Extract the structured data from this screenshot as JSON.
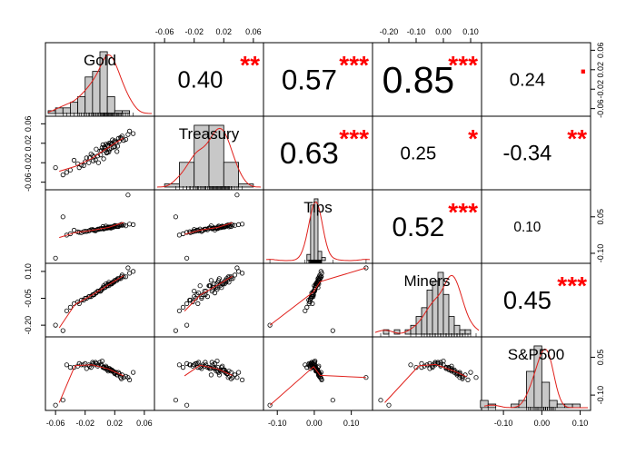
{
  "chart_data": {
    "type": "scatter-matrix",
    "variables": [
      "Gold",
      "Treasury",
      "Tips",
      "Miners",
      "S&P500"
    ],
    "ranges": [
      [
        -0.07,
        0.07
      ],
      [
        -0.07,
        0.07
      ],
      [
        -0.13,
        0.15
      ],
      [
        -0.25,
        0.13
      ],
      [
        -0.15,
        0.12
      ]
    ],
    "ticks": {
      "top": {
        "panel": 1,
        "labels": [
          "-0.06",
          "-0.02",
          "0.02",
          "0.06"
        ],
        "values": [
          -0.06,
          -0.02,
          0.02,
          0.06
        ]
      },
      "top2": {
        "panel": 3,
        "labels": [
          "-0.20",
          "-0.10",
          "0.00",
          "0.10"
        ],
        "values": [
          -0.2,
          -0.1,
          0.0,
          0.1
        ]
      },
      "bottom": {
        "panel": 0,
        "labels": [
          "-0.06",
          "-0.02",
          "0.02",
          "0.06"
        ],
        "values": [
          -0.06,
          -0.02,
          0.02,
          0.06
        ]
      },
      "bottom2": {
        "panel": 2,
        "labels": [
          "-0.10",
          "0.00",
          "0.10"
        ],
        "values": [
          -0.1,
          0.0,
          0.1
        ]
      },
      "bottom3": {
        "panel": 4,
        "labels": [
          "-0.10",
          "0.00",
          "0.10"
        ],
        "values": [
          -0.1,
          0.0,
          0.1
        ]
      },
      "left": {
        "panel": 1,
        "labels": [
          "0.06",
          "0.02",
          "-0.02",
          "-0.06"
        ],
        "values": [
          0.06,
          0.02,
          -0.02,
          -0.06
        ]
      },
      "left2": {
        "panel": 3,
        "labels": [
          "0.10",
          "-0.05",
          "-0.20"
        ],
        "values": [
          0.1,
          -0.05,
          -0.2
        ]
      },
      "right": {
        "panel": 0,
        "labels": [
          "0.06",
          "0.02",
          "-0.02",
          "-0.06"
        ],
        "values": [
          0.06,
          0.02,
          -0.02,
          -0.06
        ]
      },
      "right2": {
        "panel": 2,
        "labels": [
          "0.05",
          "-0.10"
        ],
        "values": [
          0.05,
          -0.1
        ]
      },
      "right3": {
        "panel": 4,
        "labels": [
          "0.05",
          "-0.10"
        ],
        "values": [
          0.05,
          -0.1
        ]
      }
    },
    "correlations": [
      {
        "row": 0,
        "col": 1,
        "value": "0.40",
        "stars": "**"
      },
      {
        "row": 0,
        "col": 2,
        "value": "0.57",
        "stars": "***"
      },
      {
        "row": 0,
        "col": 3,
        "value": "0.85",
        "stars": "***"
      },
      {
        "row": 0,
        "col": 4,
        "value": "0.24",
        "stars": "."
      },
      {
        "row": 1,
        "col": 2,
        "value": "0.63",
        "stars": "***"
      },
      {
        "row": 1,
        "col": 3,
        "value": "0.25",
        "stars": "*"
      },
      {
        "row": 1,
        "col": 4,
        "value": "-0.34",
        "stars": "**"
      },
      {
        "row": 2,
        "col": 3,
        "value": "0.52",
        "stars": "***"
      },
      {
        "row": 2,
        "col": 4,
        "value": "0.10",
        "stars": ""
      },
      {
        "row": 3,
        "col": 4,
        "value": "0.45",
        "stars": "***"
      }
    ],
    "histograms": [
      {
        "bin_start": -0.07,
        "bin_width": 0.01,
        "counts": [
          1,
          2,
          2,
          4,
          6,
          13,
          15,
          22,
          6,
          1,
          1
        ]
      },
      {
        "bin_start": -0.06,
        "bin_width": 0.02,
        "counts": [
          1,
          8,
          20,
          20,
          8,
          1
        ]
      },
      {
        "bin_start": -0.02,
        "bin_width": 0.01,
        "counts": [
          2,
          18,
          20,
          3,
          1
        ]
      },
      {
        "bin_start": -0.22,
        "bin_width": 0.02,
        "counts": [
          1,
          0,
          1,
          0,
          1,
          2,
          4,
          6,
          10,
          12,
          14,
          9,
          4,
          2,
          1,
          1
        ]
      },
      {
        "bin_start": -0.16,
        "bin_width": 0.02,
        "counts": [
          2,
          1,
          0,
          0,
          1,
          2,
          10,
          17,
          7,
          2,
          1,
          1,
          1
        ]
      }
    ],
    "series": [
      {
        "name": "Gold",
        "values": [
          0.012,
          -0.035,
          -0.06,
          0.025,
          0.002,
          -0.018,
          0.03,
          0.008,
          -0.01,
          0.045,
          -0.025,
          0.015,
          0.005,
          -0.005,
          0.02,
          -0.04,
          0.035,
          0.01,
          -0.015,
          0.0,
          0.018,
          -0.03,
          0.028,
          0.006,
          -0.008,
          0.022,
          -0.02,
          0.012,
          0.04,
          -0.012,
          0.003,
          0.016,
          -0.045,
          0.024,
          0.009,
          -0.003,
          0.011,
          0.032,
          -0.028,
          0.007,
          0.014,
          -0.006,
          0.02,
          0.001,
          0.026,
          -0.022,
          0.013,
          0.004,
          0.038,
          -0.009,
          0.017,
          -0.014,
          0.023,
          0.006,
          0.029,
          -0.002,
          0.01,
          0.019,
          -0.05,
          0.015
        ]
      },
      {
        "name": "Treasury",
        "values": [
          0.02,
          -0.015,
          -0.03,
          0.03,
          0.005,
          -0.01,
          0.035,
          0.018,
          -0.005,
          0.04,
          -0.025,
          0.01,
          -0.012,
          0.008,
          0.025,
          -0.035,
          0.028,
          0.015,
          -0.02,
          0.004,
          0.012,
          -0.022,
          0.032,
          0.006,
          -0.008,
          0.022,
          -0.018,
          0.002,
          0.045,
          -0.002,
          0.011,
          0.019,
          -0.04,
          0.014,
          0.0,
          -0.006,
          0.016,
          0.026,
          -0.03,
          0.009,
          0.021,
          -0.014,
          0.013,
          -0.004,
          0.024,
          -0.026,
          0.007,
          0.017,
          0.038,
          -0.016,
          0.027,
          -0.01,
          0.003,
          0.012,
          0.03,
          -0.02,
          0.001,
          0.023,
          -0.045,
          0.018
        ]
      },
      {
        "name": "Tips",
        "values": [
          0.008,
          -0.005,
          -0.12,
          0.01,
          0.002,
          -0.01,
          0.015,
          0.012,
          -0.002,
          0.018,
          -0.015,
          0.004,
          0.0,
          -0.004,
          0.014,
          -0.02,
          0.013,
          0.006,
          -0.008,
          0.001,
          0.007,
          -0.012,
          0.016,
          0.003,
          -0.006,
          0.01,
          -0.009,
          0.005,
          0.02,
          -0.003,
          0.002,
          0.009,
          -0.025,
          0.011,
          0.004,
          -0.001,
          0.006,
          0.017,
          -0.014,
          0.003,
          0.008,
          -0.007,
          0.012,
          0.0,
          0.015,
          -0.011,
          0.005,
          0.01,
          0.14,
          -0.004,
          0.009,
          -0.006,
          0.013,
          0.002,
          0.019,
          -0.002,
          0.004,
          0.011,
          0.05,
          0.007
        ]
      },
      {
        "name": "Miners",
        "values": [
          0.04,
          -0.08,
          -0.2,
          0.06,
          0.0,
          -0.05,
          0.08,
          0.03,
          -0.03,
          0.1,
          -0.06,
          0.03,
          0.02,
          -0.02,
          0.05,
          -0.1,
          0.07,
          0.02,
          -0.04,
          -0.01,
          0.04,
          -0.07,
          0.06,
          0.01,
          -0.03,
          0.05,
          -0.05,
          0.02,
          0.09,
          -0.04,
          0.0,
          0.03,
          -0.12,
          0.06,
          0.02,
          -0.01,
          0.03,
          0.07,
          -0.08,
          0.01,
          0.03,
          -0.02,
          0.05,
          -0.01,
          0.06,
          -0.06,
          0.03,
          0.01,
          0.12,
          -0.03,
          0.04,
          -0.04,
          0.05,
          0.01,
          0.07,
          -0.01,
          0.02,
          0.04,
          -0.23,
          0.03
        ]
      },
      {
        "name": "S&P500",
        "values": [
          0.0,
          0.01,
          -0.14,
          -0.01,
          0.02,
          0.005,
          -0.02,
          0.015,
          0.03,
          -0.01,
          0.02,
          -0.005,
          0.01,
          0.025,
          -0.015,
          0.01,
          -0.025,
          0.0,
          0.02,
          0.03,
          -0.005,
          0.015,
          -0.03,
          0.01,
          0.02,
          -0.01,
          0.025,
          0.005,
          -0.04,
          0.01,
          0.035,
          0.0,
          0.02,
          -0.02,
          0.01,
          0.015,
          -0.005,
          -0.03,
          0.025,
          0.005,
          0.0,
          0.03,
          -0.01,
          0.02,
          -0.015,
          0.02,
          0.005,
          0.01,
          -0.03,
          0.025,
          -0.005,
          0.015,
          -0.02,
          0.01,
          -0.035,
          0.02,
          0.005,
          -0.01,
          -0.12,
          0.0
        ]
      }
    ]
  }
}
